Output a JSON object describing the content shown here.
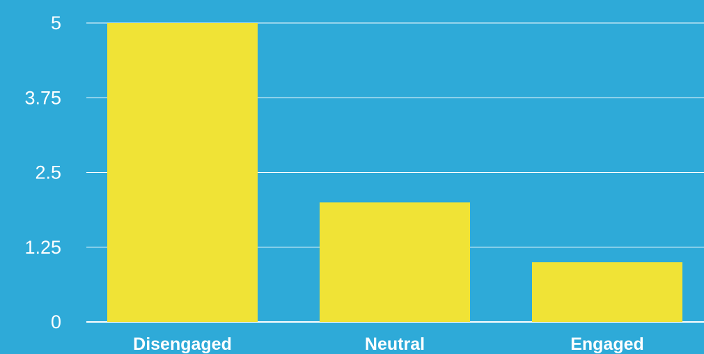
{
  "chart_data": {
    "type": "bar",
    "categories": [
      "Disengaged",
      "Neutral",
      "Engaged"
    ],
    "values": [
      5,
      2,
      1
    ],
    "ylim": [
      0,
      5
    ],
    "yticks": [
      "0",
      "1.25",
      "2.5",
      "3.75",
      "5"
    ],
    "grid": true,
    "legend": "none",
    "colors": {
      "background": "#2eaad8",
      "bar": "#f0e336",
      "text": "#ffffff",
      "grid": "#ffffff"
    }
  }
}
